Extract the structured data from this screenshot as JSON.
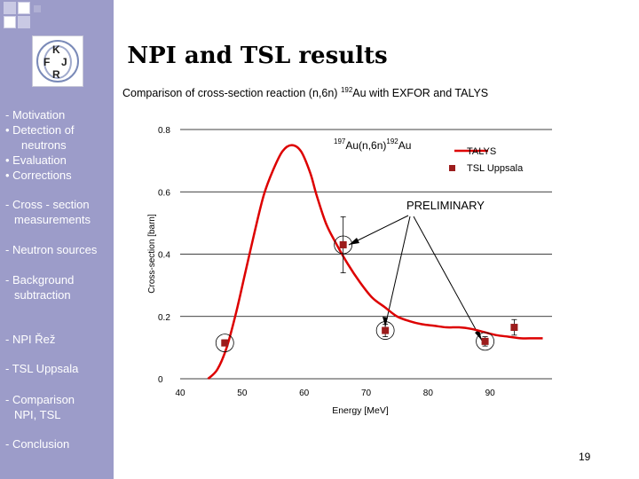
{
  "slide": {
    "title": "NPI and TSL results",
    "subtitle_prefix": "Comparison of cross-section reaction (n,6n) ",
    "subtitle_sup": "192",
    "subtitle_suffix": "Au with EXFOR and TALYS",
    "page_number": "19"
  },
  "logo": {
    "letters": [
      "K",
      "F",
      "J",
      "R"
    ]
  },
  "sidebar": {
    "items": [
      {
        "label": "- Motivation"
      },
      {
        "label": "• Detection of"
      },
      {
        "label": "neutrons"
      },
      {
        "label": "• Evaluation"
      },
      {
        "label": "• Corrections"
      },
      {
        "label": "- Cross - section"
      },
      {
        "label": "measurements"
      },
      {
        "label": "- Neutron sources"
      },
      {
        "label": "- Background"
      },
      {
        "label": "subtraction"
      },
      {
        "label": "- NPI Řež"
      },
      {
        "label": "- TSL Uppsala"
      },
      {
        "label": "- Comparison"
      },
      {
        "label": "NPI, TSL"
      },
      {
        "label": "- Conclusion"
      }
    ]
  },
  "colors": {
    "sidebar": "#9c9cc9",
    "talys_line": "#dd0000",
    "uppsala_marker": "#9c1c1c"
  },
  "chart_data": {
    "type": "line",
    "xlabel": "Energy [MeV]",
    "ylabel": "Cross-section [barn]",
    "xlim": [
      40,
      100
    ],
    "ylim": [
      0,
      0.8
    ],
    "xticks": [
      "40",
      "50",
      "60",
      "70",
      "80",
      "90"
    ],
    "yticks": [
      "0",
      "0.2",
      "0.4",
      "0.6",
      "0.8"
    ],
    "grid": "horizontal",
    "reaction_label": {
      "pre_sup": "197",
      "mid": "Au(n,6n)",
      "post_sup": "192",
      "end": "Au"
    },
    "annotation": "PRELIMINARY",
    "legend": [
      {
        "name": "TALYS",
        "marker": "line"
      },
      {
        "name": "TSL Uppsala",
        "marker": "square"
      }
    ],
    "series": [
      {
        "name": "TALYS",
        "x": [
          44.5,
          46,
          47.5,
          49,
          50.5,
          52,
          53.5,
          55,
          56.5,
          58,
          59.5,
          61,
          62,
          63.5,
          65,
          67,
          69,
          71,
          73,
          75,
          77,
          79,
          81,
          83,
          85,
          87,
          89,
          91,
          93,
          95,
          97,
          98.5
        ],
        "y": [
          0.0,
          0.03,
          0.1,
          0.21,
          0.34,
          0.47,
          0.59,
          0.67,
          0.73,
          0.75,
          0.73,
          0.66,
          0.59,
          0.5,
          0.44,
          0.37,
          0.31,
          0.26,
          0.23,
          0.2,
          0.185,
          0.175,
          0.17,
          0.165,
          0.165,
          0.16,
          0.15,
          0.14,
          0.135,
          0.13,
          0.13,
          0.13
        ]
      },
      {
        "name": "TSL Uppsala",
        "x": [
          47.2,
          66.3,
          73.1,
          89.2,
          93.9
        ],
        "y": [
          0.115,
          0.43,
          0.155,
          0.12,
          0.165
        ],
        "err": [
          0.01,
          0.09,
          0.02,
          0.015,
          0.025
        ]
      }
    ]
  }
}
